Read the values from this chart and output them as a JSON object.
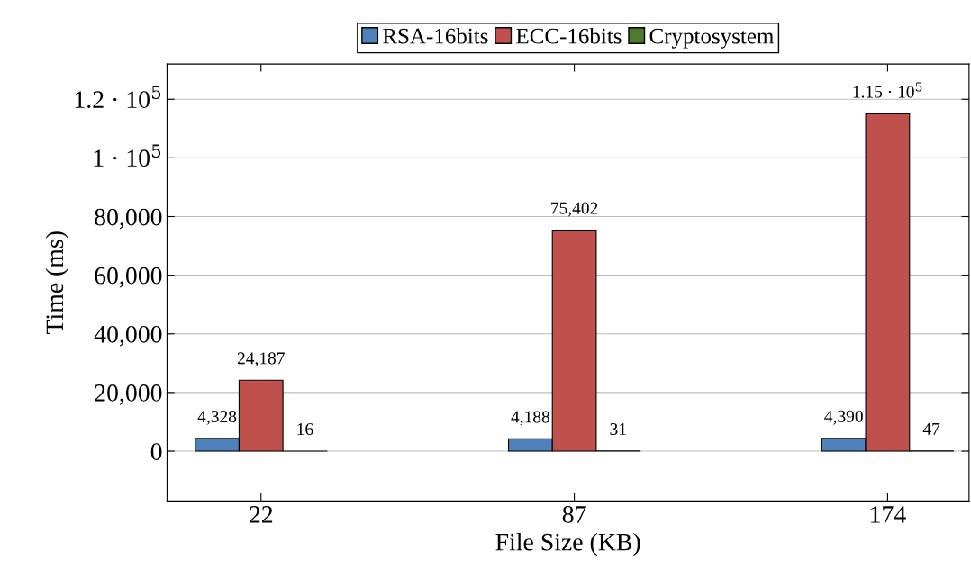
{
  "chart_data": {
    "type": "bar",
    "xlabel": "File Size (KB)",
    "ylabel": "Time (ms)",
    "categories": [
      "22",
      "87",
      "174"
    ],
    "series": [
      {
        "name": "RSA-16bits",
        "color": "#4f81bd",
        "values": [
          4328,
          4188,
          4390
        ],
        "value_labels": [
          "4,328",
          "4,188",
          "4,390"
        ]
      },
      {
        "name": "ECC-16bits",
        "color": "#c0504d",
        "values": [
          24187,
          75402,
          115000
        ],
        "value_labels": [
          "24,187",
          "75,402",
          "1.15 · 10$^{5}$"
        ]
      },
      {
        "name": "Cryptosystem",
        "color": "#4f7a2e",
        "values": [
          16,
          31,
          47
        ],
        "value_labels": [
          "16",
          "31",
          "47"
        ]
      }
    ],
    "ylim": [
      -17000,
      132000
    ],
    "yticks": [
      0,
      {
        "value": 20000,
        "label": "20,000"
      },
      {
        "value": 40000,
        "label": "40,000"
      },
      {
        "value": 60000,
        "label": "60,000"
      },
      {
        "value": 80000,
        "label": "80,000"
      },
      {
        "value": 100000,
        "label": "1 · 10$^{5}$"
      },
      {
        "value": 120000,
        "label": "1.2 · 10$^{5}$"
      }
    ],
    "grid": "y",
    "legend": "top"
  }
}
